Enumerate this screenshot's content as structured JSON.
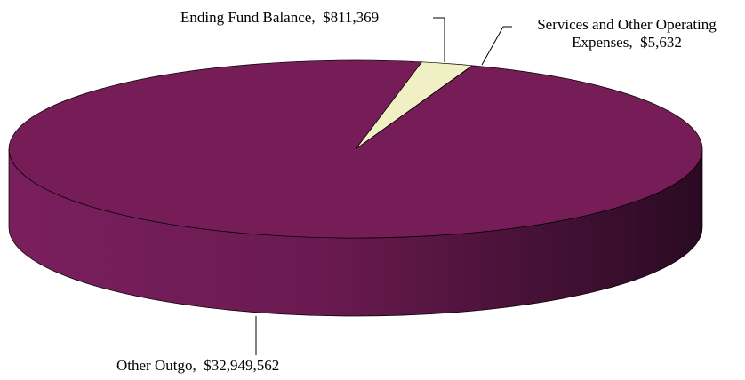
{
  "chart_data": {
    "type": "pie",
    "categories": [
      "Ending Fund Balance",
      "Services and Other Operating Expenses",
      "Other Outgo"
    ],
    "values": [
      811369,
      5632,
      32949562
    ],
    "value_labels": [
      "$811,369",
      "$5,632",
      "$32,949,562"
    ],
    "colors": [
      "#f0f0c4",
      "#7b7be0",
      "#761d58"
    ]
  }
}
